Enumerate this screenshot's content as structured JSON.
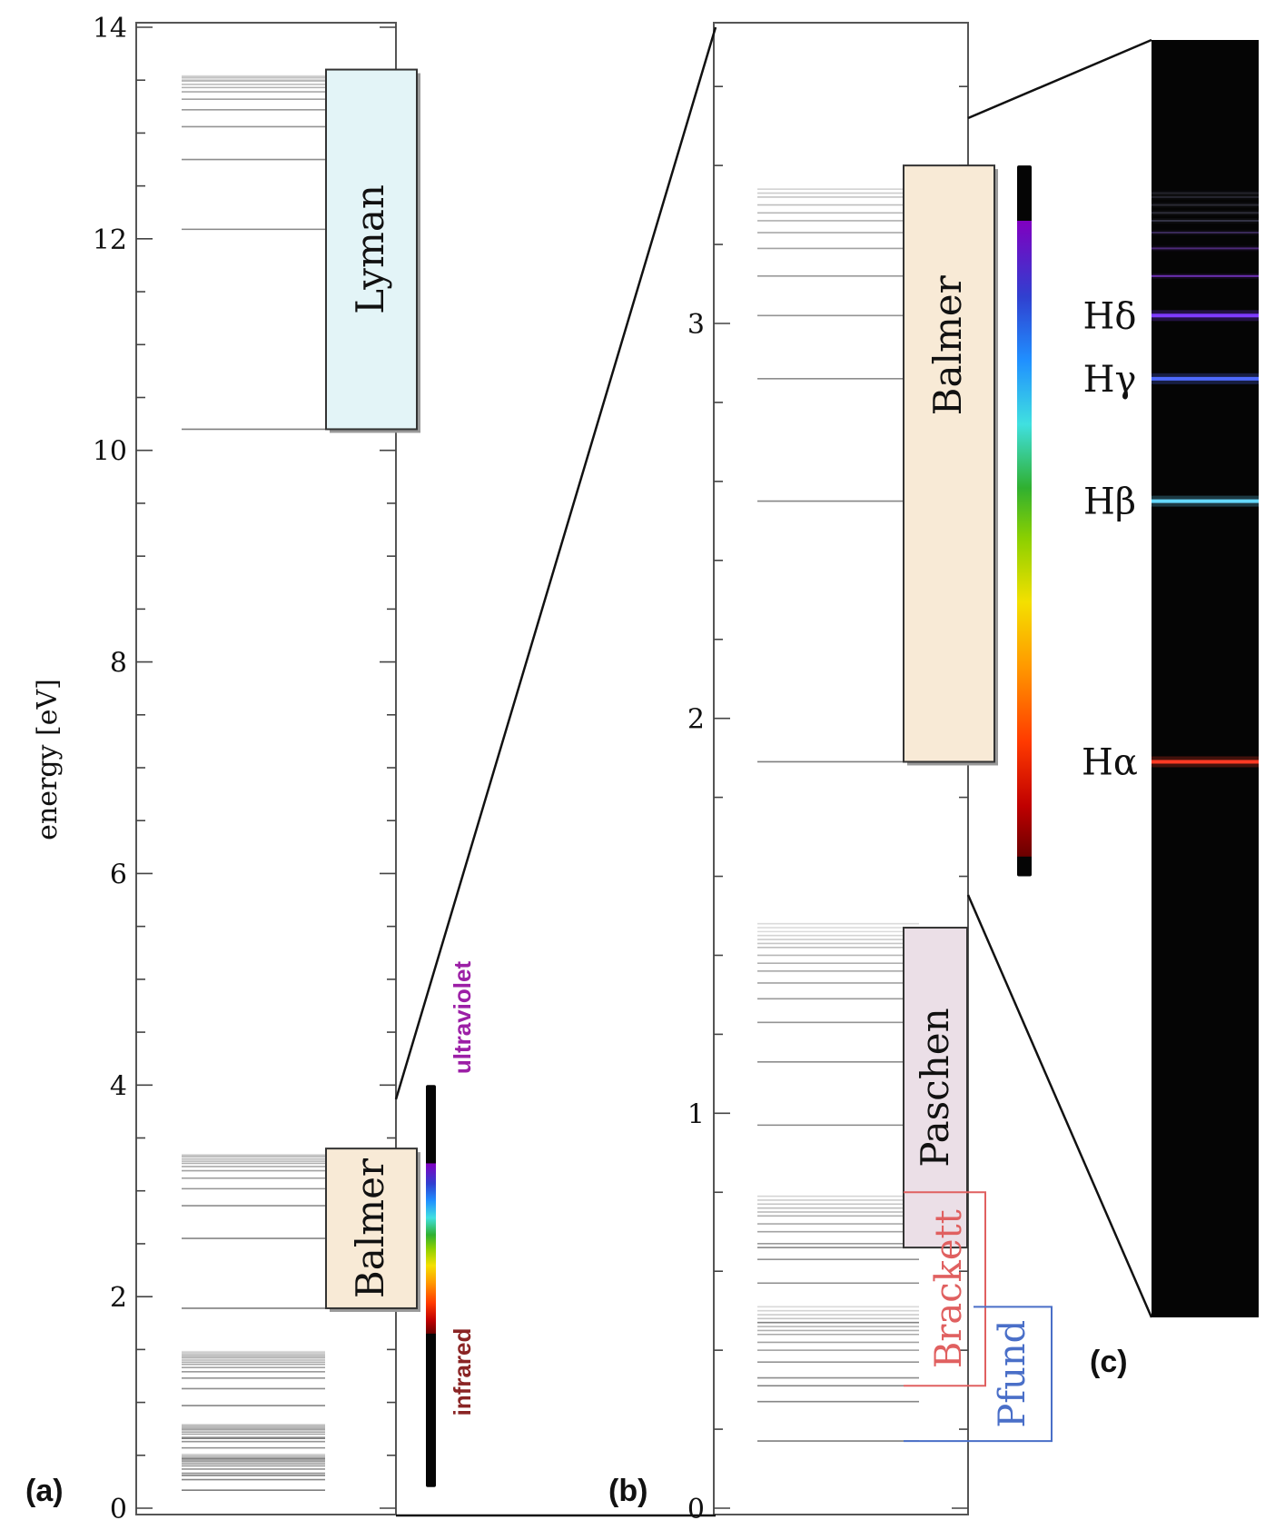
{
  "panel_a": {
    "label": "(a)",
    "ylabel": "energy [eV]",
    "yrange": [
      0,
      14
    ],
    "major_ticks": [
      0,
      2,
      4,
      6,
      8,
      10,
      12,
      14
    ],
    "boxes": {
      "lyman": {
        "label": "Lyman",
        "emin": 10.2,
        "emax": 13.6,
        "color": "#e3f4f7"
      },
      "balmer": {
        "label": "Balmer",
        "emin": 1.89,
        "emax": 3.4,
        "color": "#f8ead6"
      }
    },
    "spectrum_bar": {
      "emin": 0.2,
      "emax": 4.0,
      "visible_min": 1.65,
      "visible_max": 3.26
    },
    "side_labels": {
      "ultraviolet": "ultraviolet",
      "infrared": "infrared"
    },
    "lines": {
      "lyman": [
        10.2,
        12.09,
        12.75,
        13.06,
        13.22,
        13.32,
        13.39,
        13.43,
        13.46,
        13.49,
        13.5,
        13.52,
        13.53,
        13.54
      ],
      "balmer": [
        1.89,
        2.55,
        2.86,
        3.02,
        3.12,
        3.19,
        3.23,
        3.26,
        3.28,
        3.3,
        3.32,
        3.33,
        3.34
      ],
      "paschen": [
        0.66,
        0.97,
        1.13,
        1.23,
        1.29,
        1.33,
        1.36,
        1.38,
        1.4,
        1.42,
        1.43,
        1.44,
        1.45,
        1.46,
        1.47,
        1.48
      ],
      "brackett": [
        0.31,
        0.47,
        0.57,
        0.63,
        0.67,
        0.7,
        0.72,
        0.74,
        0.75,
        0.76,
        0.77,
        0.78,
        0.79
      ],
      "pfund": [
        0.17,
        0.27,
        0.33,
        0.37,
        0.4,
        0.42,
        0.44,
        0.45,
        0.46,
        0.47,
        0.48,
        0.49,
        0.5,
        0.51
      ]
    }
  },
  "panel_b": {
    "label": "(b)",
    "yrange": [
      0,
      3.75
    ],
    "major_ticks": [
      0,
      1,
      2,
      3
    ],
    "boxes": {
      "balmer": {
        "label": "Balmer",
        "emin": 1.89,
        "emax": 3.4,
        "color": "#f8ead6"
      },
      "paschen": {
        "label": "Paschen",
        "emin": 0.66,
        "emax": 1.47,
        "color": "#ebdfe7"
      }
    },
    "outline_boxes": {
      "brackett": {
        "label": "Brackett",
        "emin": 0.31,
        "emax": 0.8,
        "color": "#e06060"
      },
      "pfund": {
        "label": "Pfund",
        "emin": 0.17,
        "emax": 0.51,
        "color": "#4a6fc8"
      }
    },
    "spectrum_bar": {
      "emin": 1.6,
      "emax": 3.4,
      "visible_min": 1.65,
      "visible_max": 3.26
    }
  },
  "panel_c": {
    "label": "(c)",
    "emission_lines": [
      {
        "label": "Hα",
        "energy": 1.89,
        "color": "#ff3b24",
        "labeled": true
      },
      {
        "label": "Hβ",
        "energy": 2.55,
        "color": "#66d9ff",
        "labeled": true
      },
      {
        "label": "Hγ",
        "energy": 2.86,
        "color": "#4f6bff",
        "labeled": true
      },
      {
        "label": "Hδ",
        "energy": 3.02,
        "color": "#7f3bff",
        "labeled": true
      },
      {
        "label": "",
        "energy": 3.12,
        "color": "#6a2fb0",
        "labeled": false
      },
      {
        "label": "",
        "energy": 3.19,
        "color": "#4d2a78",
        "labeled": false
      },
      {
        "label": "",
        "energy": 3.23,
        "color": "#3a2a58",
        "labeled": false
      },
      {
        "label": "",
        "energy": 3.26,
        "color": "#333344",
        "labeled": false
      },
      {
        "label": "",
        "energy": 3.28,
        "color": "#2c2c38",
        "labeled": false
      },
      {
        "label": "",
        "energy": 3.3,
        "color": "#2a2a33",
        "labeled": false
      },
      {
        "label": "",
        "energy": 3.32,
        "color": "#262630",
        "labeled": false
      },
      {
        "label": "",
        "energy": 3.33,
        "color": "#24242c",
        "labeled": false
      }
    ]
  }
}
